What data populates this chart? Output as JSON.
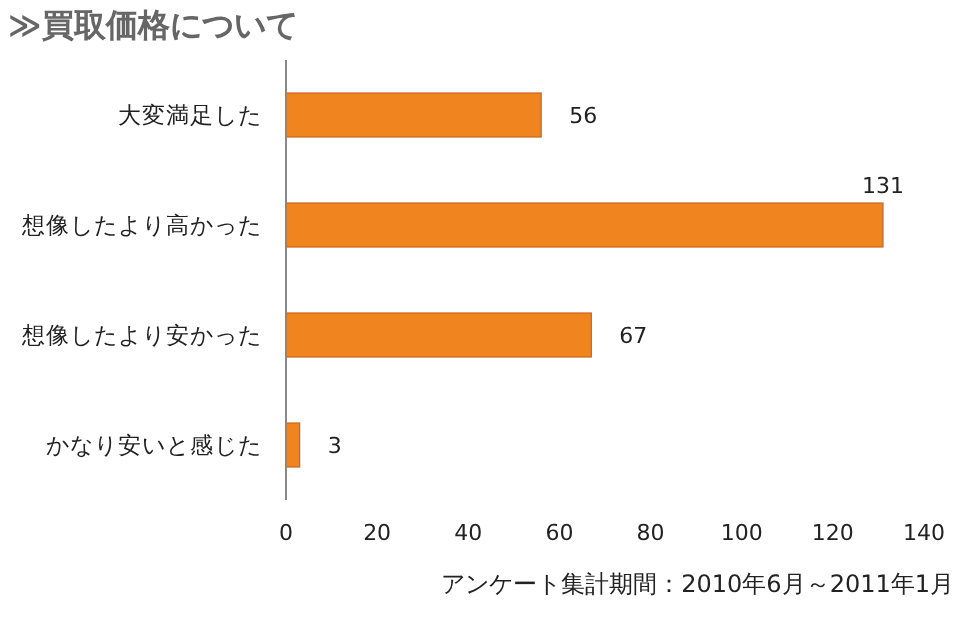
{
  "chart_data": {
    "type": "bar",
    "orientation": "horizontal",
    "title": "≫買取価格について",
    "categories": [
      "大変満足した",
      "想像したより高かった",
      "想像したより安かった",
      "かなり安いと感じた"
    ],
    "values": [
      56,
      131,
      67,
      3
    ],
    "color": "#f0841f",
    "xlim": [
      0,
      140
    ],
    "xticks": [
      0,
      20,
      40,
      60,
      80,
      100,
      120,
      140
    ],
    "data_labels": true,
    "grid": false,
    "annotations": [
      "アンケート集計期間：2010年6月～2011年1月"
    ]
  }
}
